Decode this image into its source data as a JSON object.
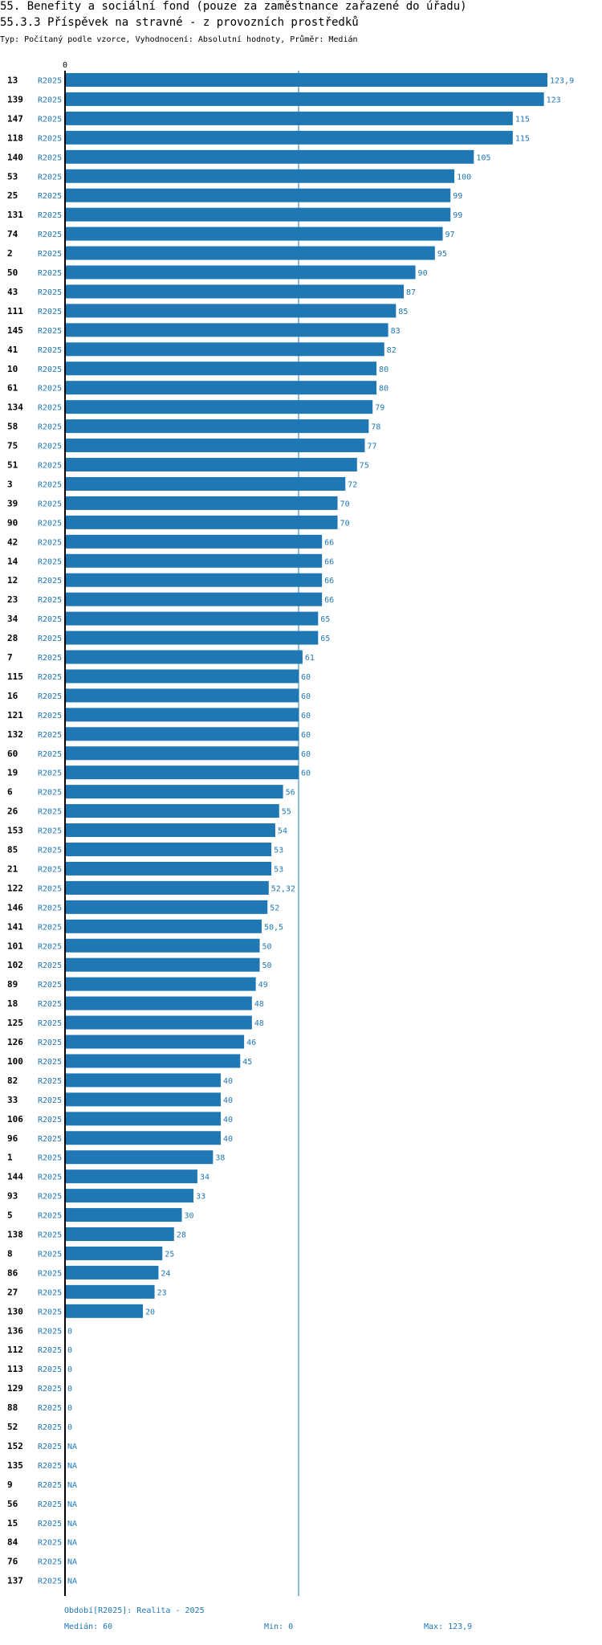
{
  "header": {
    "title": "55. Benefity a sociální fond (pouze za zaměstnance zařazené do úřadu)",
    "subtitle": "55.3.3 Příspěvek na stravné - z provozních prostředků",
    "info": "Typ: Počítaný podle vzorce, Vyhodnocení: Absolutní hodnoty, Průměr: Medián"
  },
  "colors": {
    "bar": "#1f77b4",
    "label": "#1f77b4",
    "axis": "#000000",
    "median_line": "#1f77b4"
  },
  "chart_data": {
    "type": "bar",
    "orientation": "horizontal",
    "axis_zero_label": "0",
    "xlim": [
      0,
      123.9
    ],
    "median": 60,
    "rows": [
      {
        "id": "13",
        "period": "R2025",
        "value": 123.9,
        "label": "123,9"
      },
      {
        "id": "139",
        "period": "R2025",
        "value": 123,
        "label": "123"
      },
      {
        "id": "147",
        "period": "R2025",
        "value": 115,
        "label": "115"
      },
      {
        "id": "118",
        "period": "R2025",
        "value": 115,
        "label": "115"
      },
      {
        "id": "140",
        "period": "R2025",
        "value": 105,
        "label": "105"
      },
      {
        "id": "53",
        "period": "R2025",
        "value": 100,
        "label": "100"
      },
      {
        "id": "25",
        "period": "R2025",
        "value": 99,
        "label": "99"
      },
      {
        "id": "131",
        "period": "R2025",
        "value": 99,
        "label": "99"
      },
      {
        "id": "74",
        "period": "R2025",
        "value": 97,
        "label": "97"
      },
      {
        "id": "2",
        "period": "R2025",
        "value": 95,
        "label": "95"
      },
      {
        "id": "50",
        "period": "R2025",
        "value": 90,
        "label": "90"
      },
      {
        "id": "43",
        "period": "R2025",
        "value": 87,
        "label": "87"
      },
      {
        "id": "111",
        "period": "R2025",
        "value": 85,
        "label": "85"
      },
      {
        "id": "145",
        "period": "R2025",
        "value": 83,
        "label": "83"
      },
      {
        "id": "41",
        "period": "R2025",
        "value": 82,
        "label": "82"
      },
      {
        "id": "10",
        "period": "R2025",
        "value": 80,
        "label": "80"
      },
      {
        "id": "61",
        "period": "R2025",
        "value": 80,
        "label": "80"
      },
      {
        "id": "134",
        "period": "R2025",
        "value": 79,
        "label": "79"
      },
      {
        "id": "58",
        "period": "R2025",
        "value": 78,
        "label": "78"
      },
      {
        "id": "75",
        "period": "R2025",
        "value": 77,
        "label": "77"
      },
      {
        "id": "51",
        "period": "R2025",
        "value": 75,
        "label": "75"
      },
      {
        "id": "3",
        "period": "R2025",
        "value": 72,
        "label": "72"
      },
      {
        "id": "39",
        "period": "R2025",
        "value": 70,
        "label": "70"
      },
      {
        "id": "90",
        "period": "R2025",
        "value": 70,
        "label": "70"
      },
      {
        "id": "42",
        "period": "R2025",
        "value": 66,
        "label": "66"
      },
      {
        "id": "14",
        "period": "R2025",
        "value": 66,
        "label": "66"
      },
      {
        "id": "12",
        "period": "R2025",
        "value": 66,
        "label": "66"
      },
      {
        "id": "23",
        "period": "R2025",
        "value": 66,
        "label": "66"
      },
      {
        "id": "34",
        "period": "R2025",
        "value": 65,
        "label": "65"
      },
      {
        "id": "28",
        "period": "R2025",
        "value": 65,
        "label": "65"
      },
      {
        "id": "7",
        "period": "R2025",
        "value": 61,
        "label": "61"
      },
      {
        "id": "115",
        "period": "R2025",
        "value": 60,
        "label": "60"
      },
      {
        "id": "16",
        "period": "R2025",
        "value": 60,
        "label": "60"
      },
      {
        "id": "121",
        "period": "R2025",
        "value": 60,
        "label": "60"
      },
      {
        "id": "132",
        "period": "R2025",
        "value": 60,
        "label": "60"
      },
      {
        "id": "60",
        "period": "R2025",
        "value": 60,
        "label": "60"
      },
      {
        "id": "19",
        "period": "R2025",
        "value": 60,
        "label": "60"
      },
      {
        "id": "6",
        "period": "R2025",
        "value": 56,
        "label": "56"
      },
      {
        "id": "26",
        "period": "R2025",
        "value": 55,
        "label": "55"
      },
      {
        "id": "153",
        "period": "R2025",
        "value": 54,
        "label": "54"
      },
      {
        "id": "85",
        "period": "R2025",
        "value": 53,
        "label": "53"
      },
      {
        "id": "21",
        "period": "R2025",
        "value": 53,
        "label": "53"
      },
      {
        "id": "122",
        "period": "R2025",
        "value": 52.32,
        "label": "52,32"
      },
      {
        "id": "146",
        "period": "R2025",
        "value": 52,
        "label": "52"
      },
      {
        "id": "141",
        "period": "R2025",
        "value": 50.5,
        "label": "50,5"
      },
      {
        "id": "101",
        "period": "R2025",
        "value": 50,
        "label": "50"
      },
      {
        "id": "102",
        "period": "R2025",
        "value": 50,
        "label": "50"
      },
      {
        "id": "89",
        "period": "R2025",
        "value": 49,
        "label": "49"
      },
      {
        "id": "18",
        "period": "R2025",
        "value": 48,
        "label": "48"
      },
      {
        "id": "125",
        "period": "R2025",
        "value": 48,
        "label": "48"
      },
      {
        "id": "126",
        "period": "R2025",
        "value": 46,
        "label": "46"
      },
      {
        "id": "100",
        "period": "R2025",
        "value": 45,
        "label": "45"
      },
      {
        "id": "82",
        "period": "R2025",
        "value": 40,
        "label": "40"
      },
      {
        "id": "33",
        "period": "R2025",
        "value": 40,
        "label": "40"
      },
      {
        "id": "106",
        "period": "R2025",
        "value": 40,
        "label": "40"
      },
      {
        "id": "96",
        "period": "R2025",
        "value": 40,
        "label": "40"
      },
      {
        "id": "1",
        "period": "R2025",
        "value": 38,
        "label": "38"
      },
      {
        "id": "144",
        "period": "R2025",
        "value": 34,
        "label": "34"
      },
      {
        "id": "93",
        "period": "R2025",
        "value": 33,
        "label": "33"
      },
      {
        "id": "5",
        "period": "R2025",
        "value": 30,
        "label": "30"
      },
      {
        "id": "138",
        "period": "R2025",
        "value": 28,
        "label": "28"
      },
      {
        "id": "8",
        "period": "R2025",
        "value": 25,
        "label": "25"
      },
      {
        "id": "86",
        "period": "R2025",
        "value": 24,
        "label": "24"
      },
      {
        "id": "27",
        "period": "R2025",
        "value": 23,
        "label": "23"
      },
      {
        "id": "130",
        "period": "R2025",
        "value": 20,
        "label": "20"
      },
      {
        "id": "136",
        "period": "R2025",
        "value": 0,
        "label": "0"
      },
      {
        "id": "112",
        "period": "R2025",
        "value": 0,
        "label": "0"
      },
      {
        "id": "113",
        "period": "R2025",
        "value": 0,
        "label": "0"
      },
      {
        "id": "129",
        "period": "R2025",
        "value": 0,
        "label": "0"
      },
      {
        "id": "88",
        "period": "R2025",
        "value": 0,
        "label": "0"
      },
      {
        "id": "52",
        "period": "R2025",
        "value": 0,
        "label": "0"
      },
      {
        "id": "152",
        "period": "R2025",
        "value": null,
        "label": "NA"
      },
      {
        "id": "135",
        "period": "R2025",
        "value": null,
        "label": "NA"
      },
      {
        "id": "9",
        "period": "R2025",
        "value": null,
        "label": "NA"
      },
      {
        "id": "56",
        "period": "R2025",
        "value": null,
        "label": "NA"
      },
      {
        "id": "15",
        "period": "R2025",
        "value": null,
        "label": "NA"
      },
      {
        "id": "84",
        "period": "R2025",
        "value": null,
        "label": "NA"
      },
      {
        "id": "76",
        "period": "R2025",
        "value": null,
        "label": "NA"
      },
      {
        "id": "137",
        "period": "R2025",
        "value": null,
        "label": "NA"
      }
    ]
  },
  "footer": {
    "period": "Období[R2025]: Realita - 2025",
    "median": "Medián: 60",
    "min": "Min: 0",
    "max": "Max: 123,9"
  }
}
